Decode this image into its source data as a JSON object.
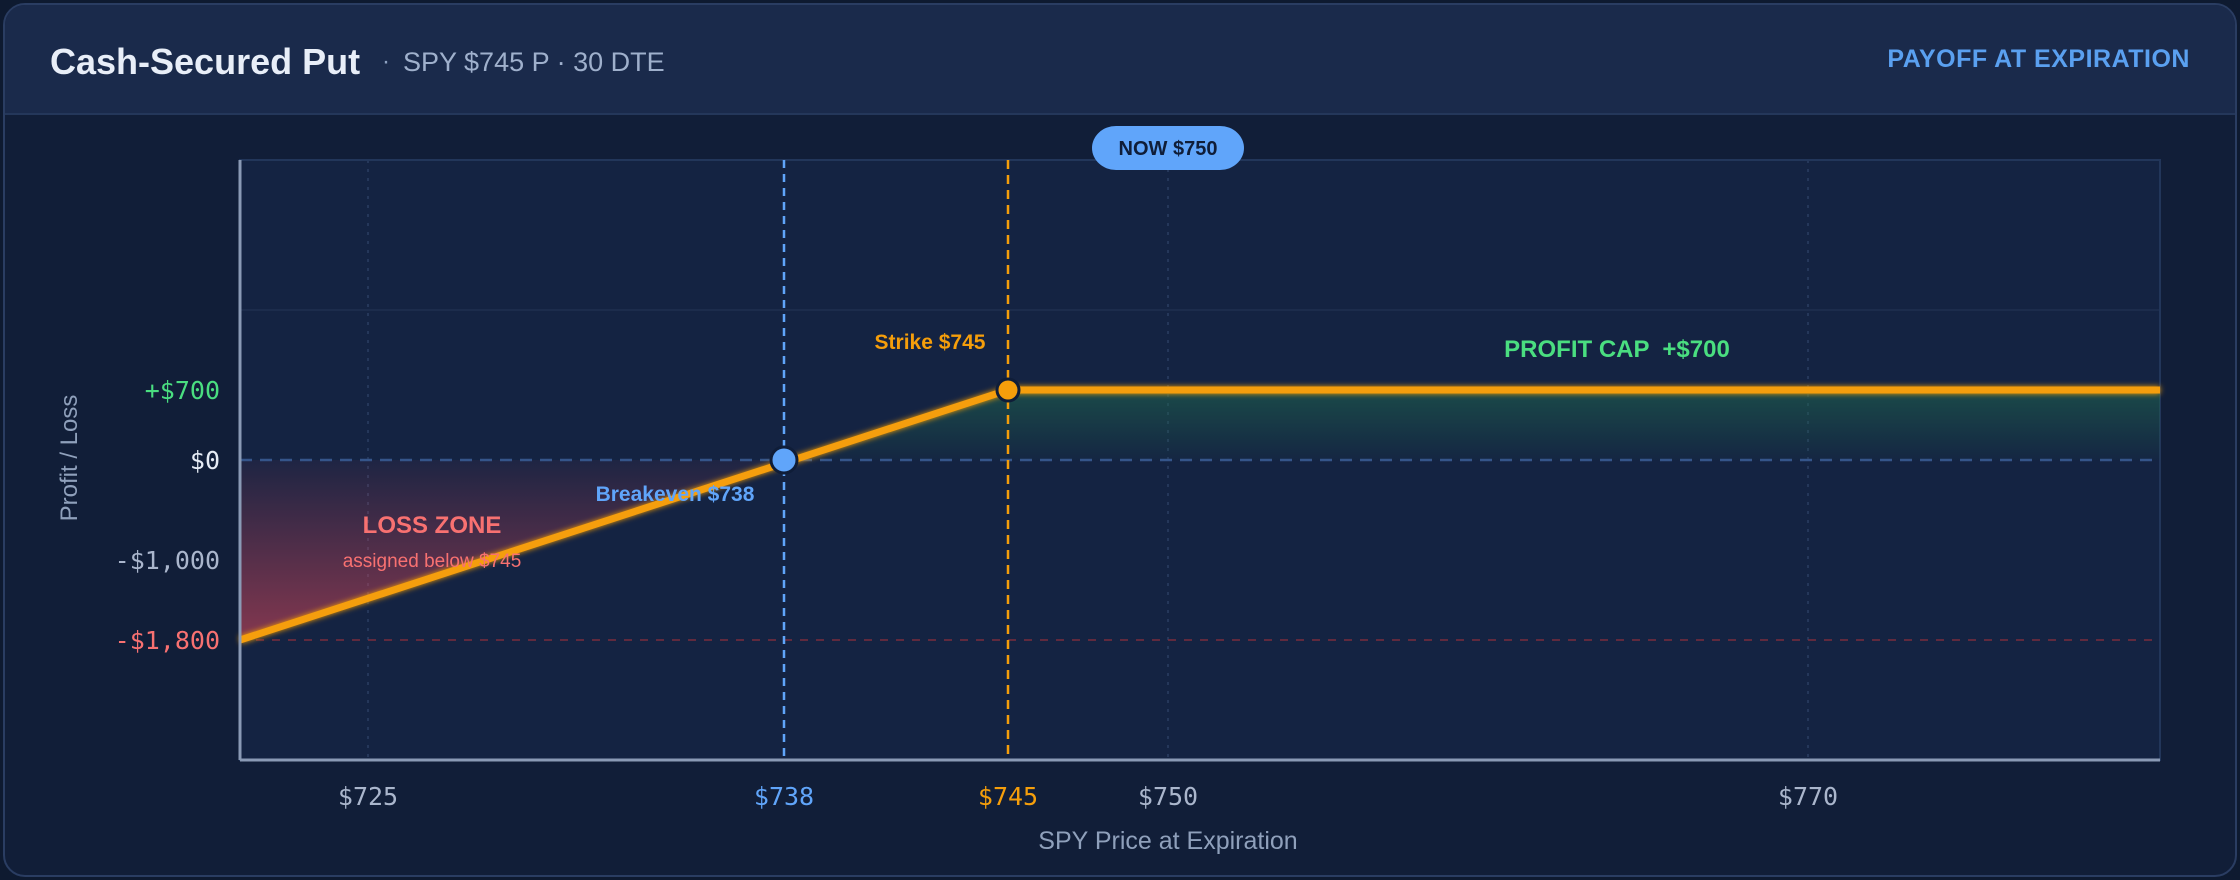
{
  "header": {
    "title": "Cash-Secured Put",
    "separator": "·",
    "subtitle": "SPY $745 P · 30 DTE",
    "badge": "PAYOFF AT EXPIRATION"
  },
  "colors": {
    "payoff": "#f59e0b",
    "profit": "#4ade80",
    "loss": "#f87171",
    "breakeven": "#60a5fa",
    "now_pill": "#60a5fa",
    "axis_text": "#aab6cc"
  },
  "annotations": {
    "now_pill": "NOW $750",
    "strike_label": "Strike $745",
    "breakeven_label": "Breakeven $738",
    "profit_cap": "PROFIT CAP  +$700",
    "loss_zone": "LOSS ZONE",
    "loss_zone_sub": "assigned below $745"
  },
  "chart_data": {
    "type": "line",
    "title": "Cash-Secured Put",
    "subtitle": "SPY $745 P · 30 DTE",
    "xlabel": "SPY Price at Expiration",
    "ylabel": "Profit / Loss",
    "xlim": [
      721,
      781
    ],
    "ylim": [
      -3000,
      3000
    ],
    "x_ticks": [
      {
        "value": 725,
        "label": "$725",
        "role": "normal"
      },
      {
        "value": 738,
        "label": "$738",
        "role": "breakeven"
      },
      {
        "value": 745,
        "label": "$745",
        "role": "strike"
      },
      {
        "value": 750,
        "label": "$750",
        "role": "normal"
      },
      {
        "value": 770,
        "label": "$770",
        "role": "normal"
      }
    ],
    "y_ticks": [
      {
        "value": 700,
        "label": "+$700",
        "role": "profit"
      },
      {
        "value": 0,
        "label": "$0",
        "role": "zero"
      },
      {
        "value": -1000,
        "label": "-$1,000",
        "role": "normal"
      },
      {
        "value": -1800,
        "label": "-$1,800",
        "role": "loss"
      }
    ],
    "series": [
      {
        "points": [
          [
            721,
            -1800
          ],
          [
            745,
            700
          ],
          [
            781,
            700
          ]
        ]
      }
    ],
    "key_points": {
      "strike": {
        "x": 745,
        "y": 700
      },
      "breakeven": {
        "x": 738,
        "y": 0
      },
      "current_price": 750,
      "max_profit": 700
    },
    "grid": true,
    "legend": "none"
  }
}
